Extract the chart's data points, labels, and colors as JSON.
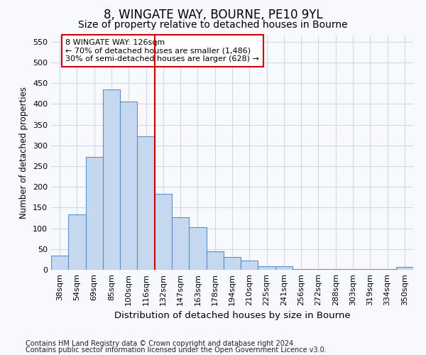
{
  "title1": "8, WINGATE WAY, BOURNE, PE10 9YL",
  "title2": "Size of property relative to detached houses in Bourne",
  "xlabel": "Distribution of detached houses by size in Bourne",
  "ylabel": "Number of detached properties",
  "categories": [
    "38sqm",
    "54sqm",
    "69sqm",
    "85sqm",
    "100sqm",
    "116sqm",
    "132sqm",
    "147sqm",
    "163sqm",
    "178sqm",
    "194sqm",
    "210sqm",
    "225sqm",
    "241sqm",
    "256sqm",
    "272sqm",
    "288sqm",
    "303sqm",
    "319sqm",
    "334sqm",
    "350sqm"
  ],
  "values": [
    35,
    133,
    272,
    435,
    405,
    322,
    183,
    127,
    103,
    45,
    30,
    22,
    8,
    9,
    2,
    2,
    2,
    2,
    2,
    2,
    6
  ],
  "bar_color": "#c5d8f0",
  "bar_edge_color": "#5b8fc9",
  "vline_color": "#cc0000",
  "annotation_text": "8 WINGATE WAY: 126sqm\n← 70% of detached houses are smaller (1,486)\n30% of semi-detached houses are larger (628) →",
  "annotation_box_color": "white",
  "annotation_box_edge": "#cc0000",
  "ylim": [
    0,
    565
  ],
  "yticks": [
    0,
    50,
    100,
    150,
    200,
    250,
    300,
    350,
    400,
    450,
    500,
    550
  ],
  "footnote1": "Contains HM Land Registry data © Crown copyright and database right 2024.",
  "footnote2": "Contains public sector information licensed under the Open Government Licence v3.0.",
  "title1_fontsize": 12,
  "title2_fontsize": 10,
  "xlabel_fontsize": 9.5,
  "ylabel_fontsize": 8.5,
  "tick_fontsize": 8,
  "footnote_fontsize": 7,
  "background_color": "#f7f9fd",
  "grid_color": "#d0d8e8"
}
